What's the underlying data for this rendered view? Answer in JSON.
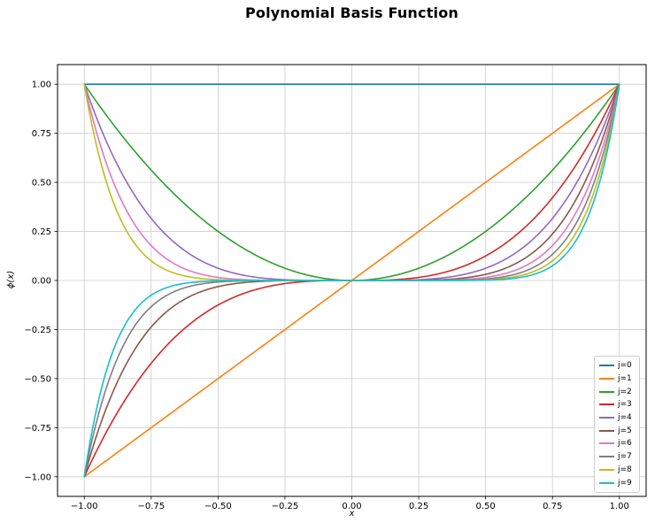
{
  "title": "Polynomial Basis Function",
  "chart_data": {
    "type": "line",
    "title": "Polynomial Basis Function",
    "xlabel": "x",
    "ylabel": "ϕ(x)",
    "xlim": [
      -1.1,
      1.1
    ],
    "ylim": [
      -1.1,
      1.1
    ],
    "grid": true,
    "grid_color": "#cccccc",
    "background_color": "#ffffff",
    "legend": {
      "position": "lower right"
    },
    "xticks": {
      "values": [
        -1.0,
        -0.75,
        -0.5,
        -0.25,
        0.0,
        0.25,
        0.5,
        0.75,
        1.0
      ],
      "labels": [
        "−1.00",
        "−0.75",
        "−0.50",
        "−0.25",
        "0.00",
        "0.25",
        "0.50",
        "0.75",
        "1.00"
      ]
    },
    "yticks": {
      "values": [
        -1.0,
        -0.75,
        -0.5,
        -0.25,
        0.0,
        0.25,
        0.5,
        0.75,
        1.0
      ],
      "labels": [
        "−1.00",
        "−0.75",
        "−0.50",
        "−0.25",
        "0.00",
        "0.25",
        "0.50",
        "0.75",
        "1.00"
      ]
    },
    "x": [
      -1.0,
      -0.9,
      -0.8,
      -0.7,
      -0.6,
      -0.5,
      -0.4,
      -0.3,
      -0.2,
      -0.1,
      0.0,
      0.1,
      0.2,
      0.3,
      0.4,
      0.5,
      0.6,
      0.7,
      0.8,
      0.9,
      1.0
    ],
    "series": [
      {
        "name": "j=0",
        "exponent": 0,
        "color": "#1f77b4",
        "values": [
          1,
          1,
          1,
          1,
          1,
          1,
          1,
          1,
          1,
          1,
          1,
          1,
          1,
          1,
          1,
          1,
          1,
          1,
          1,
          1,
          1
        ]
      },
      {
        "name": "j=1",
        "exponent": 1,
        "color": "#ff7f0e",
        "values": [
          -1.0,
          -0.9,
          -0.8,
          -0.7,
          -0.6,
          -0.5,
          -0.4,
          -0.3,
          -0.2,
          -0.1,
          0.0,
          0.1,
          0.2,
          0.3,
          0.4,
          0.5,
          0.6,
          0.7,
          0.8,
          0.9,
          1.0
        ]
      },
      {
        "name": "j=2",
        "exponent": 2,
        "color": "#2ca02c",
        "values": [
          1,
          0.81,
          0.64,
          0.49,
          0.36,
          0.25,
          0.16,
          0.09,
          0.04,
          0.01,
          0,
          0.01,
          0.04,
          0.09,
          0.16,
          0.25,
          0.36,
          0.49,
          0.64,
          0.81,
          1
        ]
      },
      {
        "name": "j=3",
        "exponent": 3,
        "color": "#d62728",
        "values": [
          -1,
          -0.729,
          -0.512,
          -0.343,
          -0.216,
          -0.125,
          -0.064,
          -0.027,
          -0.008,
          -0.001,
          0,
          0.001,
          0.008,
          0.027,
          0.064,
          0.125,
          0.216,
          0.343,
          0.512,
          0.729,
          1
        ]
      },
      {
        "name": "j=4",
        "exponent": 4,
        "color": "#9467bd",
        "values": [
          1,
          0.6561,
          0.4096,
          0.2401,
          0.1296,
          0.0625,
          0.0256,
          0.0081,
          0.0016,
          0.0001,
          0,
          0.0001,
          0.0016,
          0.0081,
          0.0256,
          0.0625,
          0.1296,
          0.2401,
          0.4096,
          0.6561,
          1
        ]
      },
      {
        "name": "j=5",
        "exponent": 5,
        "color": "#8c564b",
        "values": [
          -1,
          -0.5905,
          -0.3277,
          -0.1681,
          -0.0778,
          -0.0313,
          -0.0102,
          -0.0024,
          -0.0003,
          0,
          0,
          0,
          0.0003,
          0.0024,
          0.0102,
          0.0313,
          0.0778,
          0.1681,
          0.3277,
          0.5905,
          1
        ]
      },
      {
        "name": "j=6",
        "exponent": 6,
        "color": "#e377c2",
        "values": [
          1,
          0.5314,
          0.2621,
          0.1176,
          0.0467,
          0.0156,
          0.0041,
          0.0007,
          0.0001,
          0,
          0,
          0,
          0.0001,
          0.0007,
          0.0041,
          0.0156,
          0.0467,
          0.1176,
          0.2621,
          0.5314,
          1
        ]
      },
      {
        "name": "j=7",
        "exponent": 7,
        "color": "#7f7f7f",
        "values": [
          -1,
          -0.4783,
          -0.2097,
          -0.0824,
          -0.028,
          -0.0078,
          -0.0016,
          -0.0002,
          0,
          0,
          0,
          0,
          0,
          0.0002,
          0.0016,
          0.0078,
          0.028,
          0.0824,
          0.2097,
          0.4783,
          1
        ]
      },
      {
        "name": "j=8",
        "exponent": 8,
        "color": "#bcbd22",
        "values": [
          1,
          0.4305,
          0.1678,
          0.0576,
          0.0168,
          0.0039,
          0.0007,
          0.0001,
          0,
          0,
          0,
          0,
          0,
          0.0001,
          0.0007,
          0.0039,
          0.0168,
          0.0576,
          0.1678,
          0.4305,
          1
        ]
      },
      {
        "name": "j=9",
        "exponent": 9,
        "color": "#17becf",
        "values": [
          -1,
          -0.3874,
          -0.1342,
          -0.0404,
          -0.0101,
          -0.002,
          -0.0003,
          0,
          0,
          0,
          0,
          0,
          0,
          0,
          0.0003,
          0.002,
          0.0101,
          0.0404,
          0.1342,
          0.3874,
          1
        ]
      }
    ]
  }
}
